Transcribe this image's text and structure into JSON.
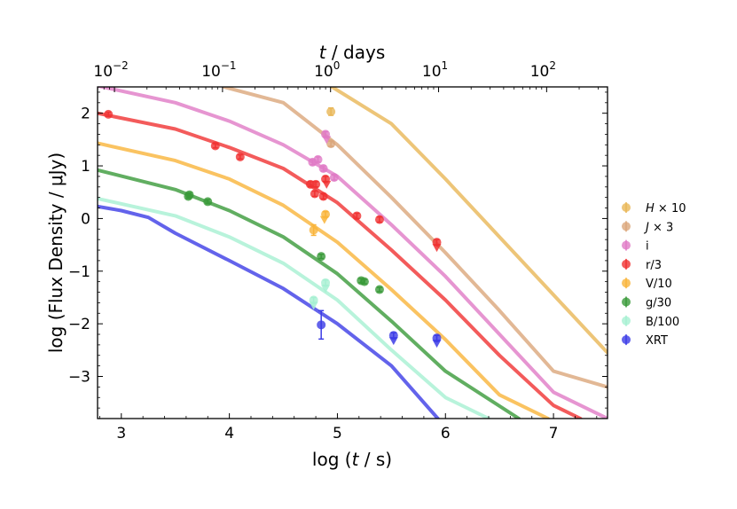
{
  "chart_data": {
    "type": "scatter",
    "title": "",
    "xlabel": "log (t / s)",
    "ylabel": "log (Flux Density / μJy)",
    "top_xlabel": "t / days",
    "xlim": [
      2.78,
      7.5
    ],
    "ylim": [
      -3.8,
      2.5
    ],
    "x_ticks": [
      3,
      4,
      5,
      6,
      7
    ],
    "x_tick_labels": [
      "3",
      "4",
      "5",
      "6",
      "7"
    ],
    "y_ticks": [
      -3,
      -2,
      -1,
      0,
      1,
      2
    ],
    "y_tick_labels": [
      "−3",
      "−2",
      "−1",
      "0",
      "1",
      "2"
    ],
    "top_ticks_days": [
      0.01,
      0.1,
      1,
      10,
      100
    ],
    "top_tick_labels": [
      {
        "base": "10",
        "exp": "−2"
      },
      {
        "base": "10",
        "exp": "−1"
      },
      {
        "base": "10",
        "exp": "0"
      },
      {
        "base": "10",
        "exp": "1"
      },
      {
        "base": "10",
        "exp": "2"
      }
    ],
    "legend_position": "right, outside",
    "series": [
      {
        "name": "H×10",
        "legend_main": "H",
        "legend_suffix": " × 10",
        "italic": true,
        "color": "#e8b656",
        "curve": [
          [
            4.95,
            2.5
          ],
          [
            5.5,
            1.8
          ],
          [
            6.0,
            0.75
          ],
          [
            6.5,
            -0.35
          ],
          [
            7.0,
            -1.45
          ],
          [
            7.5,
            -2.55
          ]
        ],
        "points": [
          {
            "x": 4.94,
            "y": 2.03,
            "ye": 0.07
          }
        ],
        "upper_limits": []
      },
      {
        "name": "J×3",
        "legend_main": "J",
        "legend_suffix": " × 3",
        "italic": true,
        "color": "#dba67a",
        "curve": [
          [
            3.95,
            2.5
          ],
          [
            4.5,
            2.2
          ],
          [
            5.0,
            1.4
          ],
          [
            5.5,
            0.4
          ],
          [
            6.0,
            -0.65
          ],
          [
            6.5,
            -1.75
          ],
          [
            7.0,
            -2.9
          ],
          [
            7.5,
            -3.2
          ]
        ],
        "points": [
          {
            "x": 4.94,
            "y": 1.42,
            "ye": 0.05
          }
        ],
        "upper_limits": []
      },
      {
        "name": "i",
        "legend_main": "i",
        "legend_suffix": "",
        "italic": false,
        "color": "#e07ac5",
        "curve": [
          [
            2.78,
            2.52
          ],
          [
            3.5,
            2.2
          ],
          [
            4.0,
            1.85
          ],
          [
            4.5,
            1.4
          ],
          [
            5.0,
            0.8
          ],
          [
            5.5,
            -0.12
          ],
          [
            6.0,
            -1.1
          ],
          [
            6.5,
            -2.2
          ],
          [
            7.0,
            -3.3
          ],
          [
            7.5,
            -3.8
          ]
        ],
        "points": [
          {
            "x": 4.77,
            "y": 1.07,
            "ye": 0.05
          },
          {
            "x": 4.82,
            "y": 1.12,
            "ye": 0.05
          },
          {
            "x": 4.89,
            "y": 1.6,
            "ye": 0.05
          },
          {
            "x": 4.87,
            "y": 0.95,
            "ye": 0.05
          },
          {
            "x": 4.97,
            "y": 0.78,
            "ye": 0.05
          }
        ],
        "upper_limits": [
          {
            "x": 4.9,
            "y": 1.5
          }
        ]
      },
      {
        "name": "r/3",
        "legend_main": "r/3",
        "legend_suffix": "",
        "italic": false,
        "color": "#f03232",
        "curve": [
          [
            2.78,
            2.0
          ],
          [
            3.5,
            1.7
          ],
          [
            4.0,
            1.35
          ],
          [
            4.5,
            0.95
          ],
          [
            5.0,
            0.3
          ],
          [
            5.5,
            -0.6
          ],
          [
            6.0,
            -1.55
          ],
          [
            6.5,
            -2.6
          ],
          [
            7.0,
            -3.55
          ],
          [
            7.25,
            -3.8
          ]
        ],
        "points": [
          {
            "x": 2.88,
            "y": 1.98,
            "ye": 0.04
          },
          {
            "x": 3.87,
            "y": 1.38,
            "ye": 0.04
          },
          {
            "x": 4.1,
            "y": 1.17,
            "ye": 0.04
          },
          {
            "x": 4.75,
            "y": 0.65,
            "ye": 0.05
          },
          {
            "x": 4.8,
            "y": 0.65,
            "ye": 0.05
          },
          {
            "x": 4.79,
            "y": 0.47,
            "ye": 0.05
          },
          {
            "x": 4.87,
            "y": 0.42,
            "ye": 0.05
          },
          {
            "x": 4.89,
            "y": 0.75,
            "ye": 0.05
          },
          {
            "x": 5.18,
            "y": 0.05,
            "ye": 0.05
          },
          {
            "x": 5.39,
            "y": -0.02,
            "ye": 0.05
          },
          {
            "x": 5.92,
            "y": -0.45,
            "ye": 0.05
          }
        ],
        "upper_limits": [
          {
            "x": 4.9,
            "y": 0.65
          },
          {
            "x": 5.92,
            "y": -0.55
          }
        ]
      },
      {
        "name": "V/10",
        "legend_main": "V/10",
        "legend_suffix": "",
        "italic": false,
        "color": "#f9b43a",
        "curve": [
          [
            2.78,
            1.43
          ],
          [
            3.5,
            1.1
          ],
          [
            4.0,
            0.75
          ],
          [
            4.5,
            0.25
          ],
          [
            5.0,
            -0.45
          ],
          [
            5.5,
            -1.35
          ],
          [
            6.0,
            -2.3
          ],
          [
            6.5,
            -3.35
          ],
          [
            6.95,
            -3.8
          ]
        ],
        "points": [
          {
            "x": 4.78,
            "y": -0.22,
            "ye": 0.1
          },
          {
            "x": 4.89,
            "y": 0.08,
            "ye": 0.05
          }
        ],
        "upper_limits": [
          {
            "x": 4.88,
            "y": -0.02
          }
        ]
      },
      {
        "name": "g/30",
        "legend_main": "g/30",
        "legend_suffix": "",
        "italic": false,
        "color": "#3a9a3a",
        "curve": [
          [
            2.78,
            0.92
          ],
          [
            3.5,
            0.55
          ],
          [
            4.0,
            0.15
          ],
          [
            4.5,
            -0.35
          ],
          [
            5.0,
            -1.05
          ],
          [
            5.5,
            -1.95
          ],
          [
            6.0,
            -2.9
          ],
          [
            6.68,
            -3.8
          ]
        ],
        "points": [
          {
            "x": 3.62,
            "y": 0.42,
            "ye": 0.04
          },
          {
            "x": 3.63,
            "y": 0.45,
            "ye": 0.04
          },
          {
            "x": 3.8,
            "y": 0.32,
            "ye": 0.04
          },
          {
            "x": 4.85,
            "y": -0.72,
            "ye": 0.04
          },
          {
            "x": 5.22,
            "y": -1.18,
            "ye": 0.04
          },
          {
            "x": 5.25,
            "y": -1.2,
            "ye": 0.04
          },
          {
            "x": 5.39,
            "y": -1.35,
            "ye": 0.04
          }
        ],
        "upper_limits": []
      },
      {
        "name": "B/100",
        "legend_main": "B/100",
        "legend_suffix": "",
        "italic": false,
        "color": "#a6f0d2",
        "curve": [
          [
            2.78,
            0.38
          ],
          [
            3.5,
            0.05
          ],
          [
            4.0,
            -0.35
          ],
          [
            4.5,
            -0.85
          ],
          [
            5.0,
            -1.55
          ],
          [
            5.5,
            -2.5
          ],
          [
            6.0,
            -3.4
          ],
          [
            6.4,
            -3.8
          ]
        ],
        "points": [
          {
            "x": 4.78,
            "y": -1.55,
            "ye": 0.05
          },
          {
            "x": 4.89,
            "y": -1.22,
            "ye": 0.05
          }
        ],
        "upper_limits": [
          {
            "x": 4.78,
            "y": -1.65
          },
          {
            "x": 4.89,
            "y": -1.33
          }
        ]
      },
      {
        "name": "XRT",
        "legend_main": "XRT",
        "legend_suffix": "",
        "italic": false,
        "color": "#3c3ce6",
        "curve": [
          [
            2.78,
            0.23
          ],
          [
            3.0,
            0.15
          ],
          [
            3.25,
            0.02
          ],
          [
            3.5,
            -0.28
          ],
          [
            4.0,
            -0.8
          ],
          [
            4.5,
            -1.33
          ],
          [
            5.0,
            -2.0
          ],
          [
            5.5,
            -2.8
          ],
          [
            5.93,
            -3.8
          ]
        ],
        "points": [
          {
            "x": 4.85,
            "y": -2.02,
            "ye": 0.27
          },
          {
            "x": 5.52,
            "y": -2.22,
            "ye": 0.05
          },
          {
            "x": 5.92,
            "y": -2.27,
            "ye": 0.05
          }
        ],
        "upper_limits": [
          {
            "x": 5.52,
            "y": -2.32
          },
          {
            "x": 5.92,
            "y": -2.37
          }
        ]
      }
    ]
  }
}
